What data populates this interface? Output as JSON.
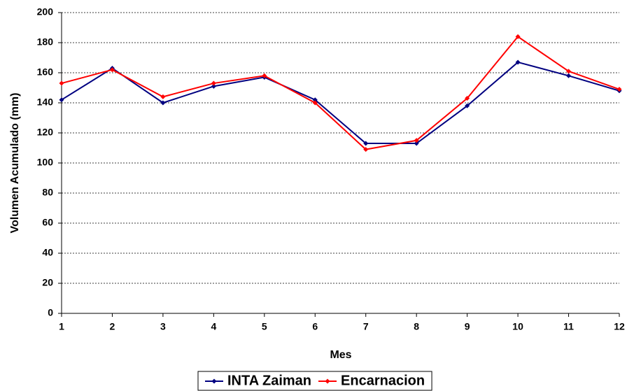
{
  "chart_data": {
    "type": "line",
    "x_label": "Mes",
    "y_label": "Volumen Acumulado (mm)",
    "x": [
      1,
      2,
      3,
      4,
      5,
      6,
      7,
      8,
      9,
      10,
      11,
      12
    ],
    "series": [
      {
        "name": "INTA Zaiman",
        "color": "#000080",
        "values": [
          142,
          163,
          140,
          151,
          157,
          142,
          113,
          113,
          138,
          167,
          158,
          148
        ]
      },
      {
        "name": "Encarnacion",
        "color": "#ff0000",
        "values": [
          153,
          162,
          144,
          153,
          158,
          140,
          109,
          115,
          143,
          184,
          161,
          149
        ]
      }
    ],
    "xlim": [
      1,
      12
    ],
    "xticks": [
      1,
      2,
      3,
      4,
      5,
      6,
      7,
      8,
      9,
      10,
      11,
      12
    ],
    "ylim": [
      0,
      200
    ],
    "yticks": [
      0,
      20,
      40,
      60,
      80,
      100,
      120,
      140,
      160,
      180,
      200
    ],
    "grid": true,
    "legend": "bottom"
  }
}
